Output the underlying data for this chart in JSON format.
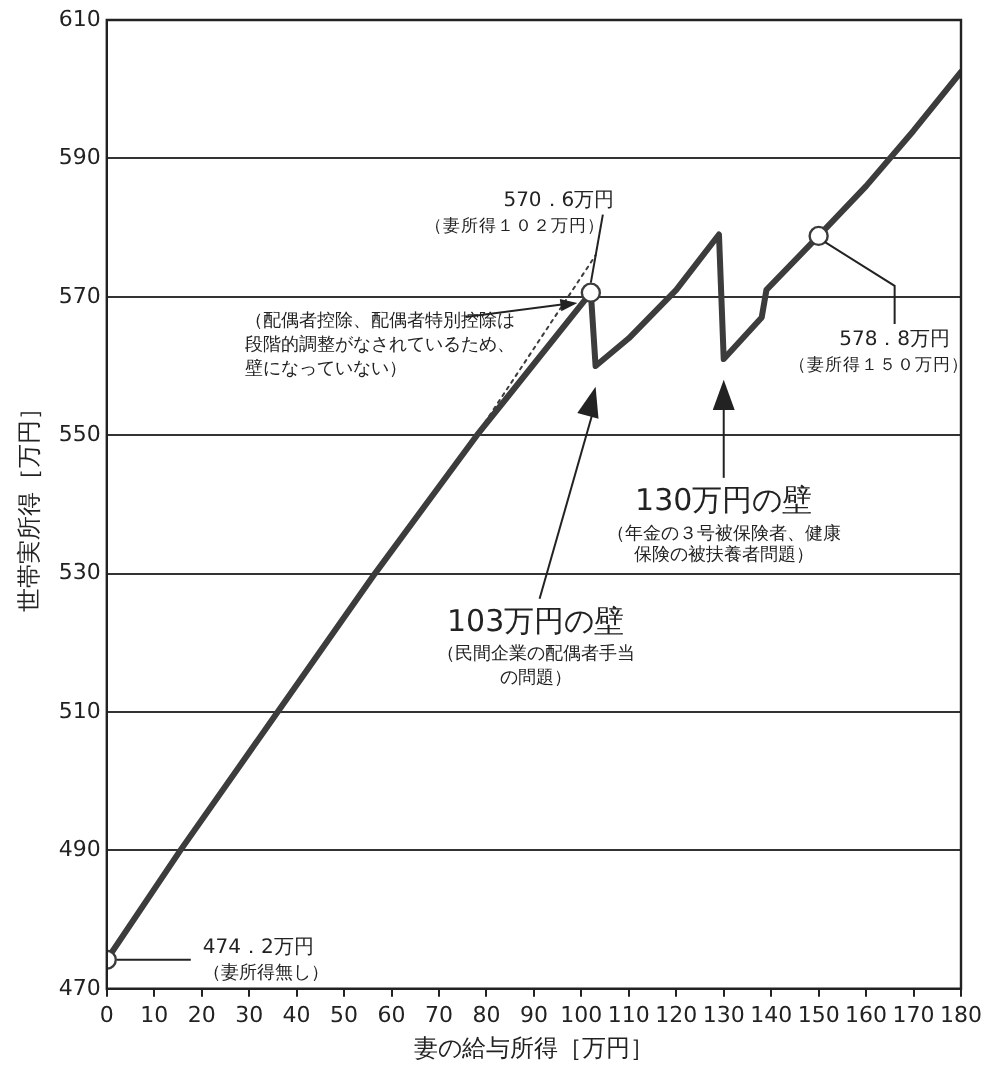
{
  "chart_data": {
    "type": "line",
    "xlabel": "妻の給与所得［万円］",
    "ylabel": "世帯実所得［万円］",
    "xlim": [
      0,
      180
    ],
    "xticks": [
      0,
      10,
      20,
      30,
      40,
      50,
      60,
      70,
      80,
      90,
      100,
      110,
      120,
      130,
      140,
      150,
      160,
      170,
      180
    ],
    "ylim": [
      470,
      610
    ],
    "yticks": [
      470,
      490,
      510,
      530,
      550,
      570,
      590,
      610
    ],
    "grid": "y",
    "legend": false,
    "series": [
      {
        "color": "#3c3c3c",
        "marker": "none",
        "x": [
          0,
          15.5,
          36,
          56.5,
          78,
          102,
          103,
          110,
          120,
          129,
          130,
          134,
          138,
          139,
          150,
          160,
          170,
          180
        ],
        "values": [
          474.2,
          490,
          510,
          530,
          550,
          570.6,
          560,
          564,
          571,
          579,
          561,
          564,
          567,
          571,
          578.8,
          586,
          594,
          602.5
        ]
      },
      {
        "type": "line",
        "color": "#3c3c3c",
        "marker": "none",
        "line_style": "dotted",
        "x": [
          75,
          103
        ],
        "values": [
          547,
          576
        ]
      },
      {
        "type": "scatter",
        "color": "#3c3c3c",
        "marker": "circle",
        "x": [
          0,
          102,
          150
        ],
        "values": [
          474.2,
          570.6,
          578.8
        ]
      }
    ],
    "annotations": [
      {
        "text": "474．2万円",
        "x": 0,
        "y": 474.2
      },
      "（妻所得無し）",
      {
        "text": "570．6万円",
        "x": 102,
        "y": 570.6
      },
      "（妻所得１０２万円）",
      {
        "text": "578．8万円",
        "x": 150,
        "y": 578.8
      },
      "（妻所得１５０万円）",
      {
        "text": "（配偶者控除、配偶者特別控除は段階的調整がなされているため、壁になっていない）",
        "x": 100,
        "y": 568.8
      },
      "103万円の壁",
      "（民間企業の配偶者手当の問題）",
      "130万円の壁",
      "（年金の３号被保険者、健康保険の被扶養者問題）"
    ]
  }
}
